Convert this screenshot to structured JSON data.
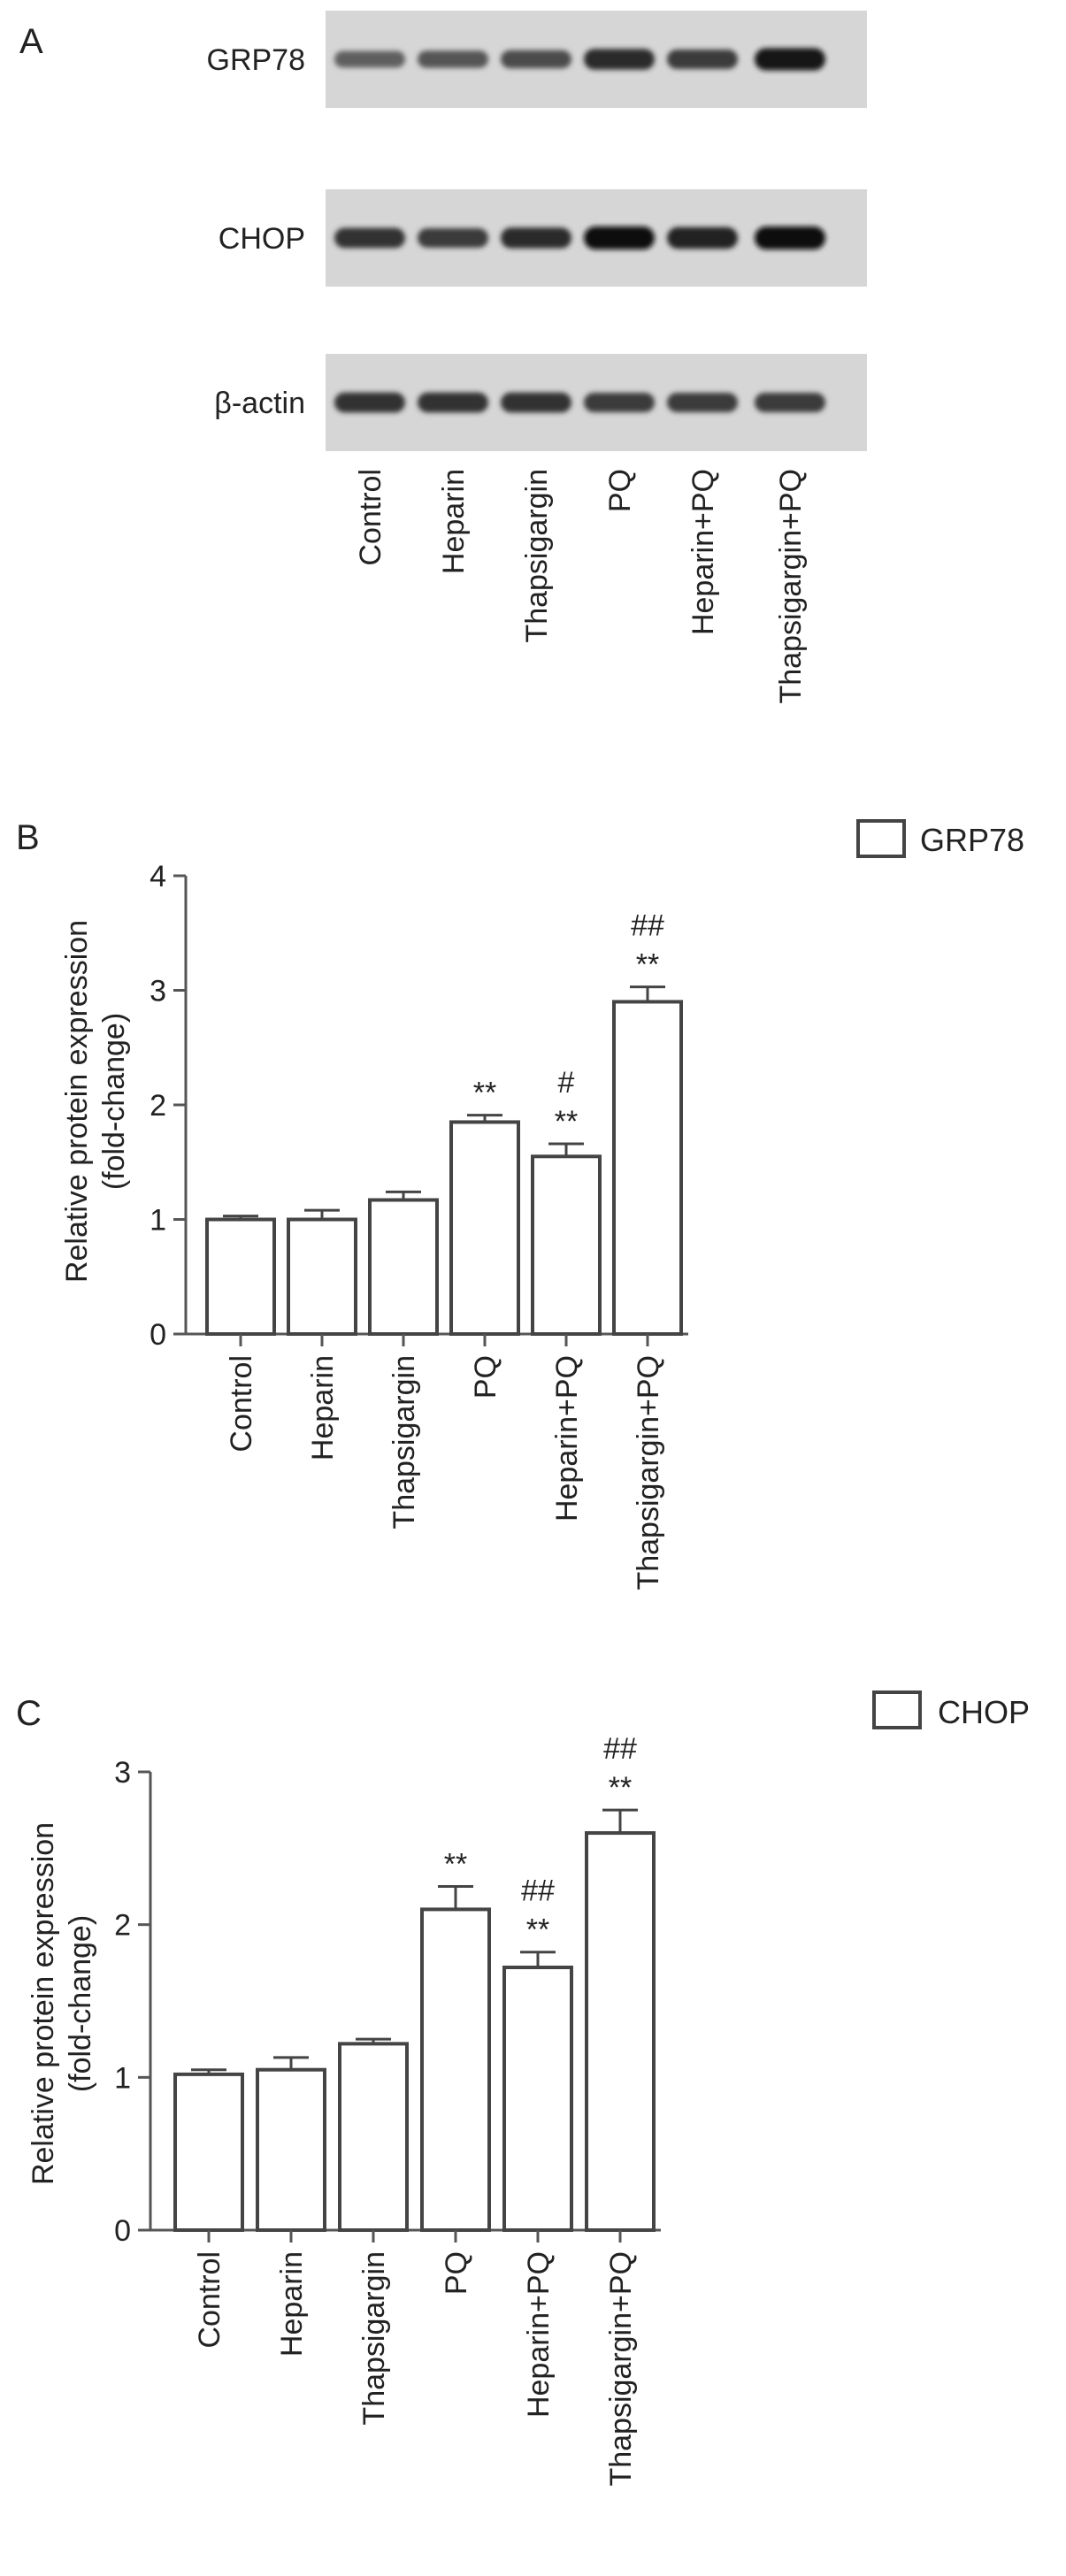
{
  "panel_a": {
    "panel_label": "A",
    "rows": [
      {
        "label": "GRP78",
        "intensities": [
          0.55,
          0.6,
          0.65,
          0.85,
          0.75,
          0.95
        ]
      },
      {
        "label": "CHOP",
        "intensities": [
          0.8,
          0.75,
          0.85,
          1.0,
          0.9,
          1.0
        ]
      },
      {
        "label": "β-actin",
        "intensities": [
          0.8,
          0.8,
          0.8,
          0.75,
          0.75,
          0.75
        ]
      }
    ],
    "lanes": [
      "Control",
      "Heparin",
      "Thapsigargin",
      "PQ",
      "Heparin+PQ",
      "Thapsigargin+PQ"
    ]
  },
  "chart_data": [
    {
      "type": "bar",
      "panel_label": "B",
      "legend": "GRP78",
      "ylabel_line1": "Relative protein expression",
      "ylabel_line2": "(fold-change)",
      "ylim": [
        0,
        4
      ],
      "yticks": [
        "0",
        "1",
        "2",
        "3",
        "4"
      ],
      "categories": [
        "Control",
        "Heparin",
        "Thapsigargin",
        "PQ",
        "Heparin+PQ",
        "Thapsigargin+PQ"
      ],
      "series": [
        {
          "name": "GRP78",
          "values": [
            1.0,
            1.0,
            1.17,
            1.85,
            1.55,
            2.9
          ],
          "errors": [
            0.03,
            0.08,
            0.07,
            0.06,
            0.11,
            0.13
          ]
        }
      ],
      "annotations": [
        {
          "category": "PQ",
          "lines": [
            "**"
          ]
        },
        {
          "category": "Heparin+PQ",
          "lines": [
            "#",
            "**"
          ]
        },
        {
          "category": "Thapsigargin+PQ",
          "lines": [
            "##",
            "**"
          ]
        }
      ]
    },
    {
      "type": "bar",
      "panel_label": "C",
      "legend": "CHOP",
      "ylabel_line1": "Relative protein expression",
      "ylabel_line2": "(fold-change)",
      "ylim": [
        0,
        3
      ],
      "yticks": [
        "0",
        "1",
        "2",
        "3"
      ],
      "categories": [
        "Control",
        "Heparin",
        "Thapsigargin",
        "PQ",
        "Heparin+PQ",
        "Thapsigargin+PQ"
      ],
      "series": [
        {
          "name": "CHOP",
          "values": [
            1.02,
            1.05,
            1.22,
            2.1,
            1.72,
            2.6
          ],
          "errors": [
            0.03,
            0.08,
            0.03,
            0.15,
            0.1,
            0.15
          ]
        }
      ],
      "annotations": [
        {
          "category": "PQ",
          "lines": [
            "**"
          ]
        },
        {
          "category": "Heparin+PQ",
          "lines": [
            "##",
            "**"
          ]
        },
        {
          "category": "Thapsigargin+PQ",
          "lines": [
            "##",
            "**"
          ]
        }
      ]
    }
  ]
}
